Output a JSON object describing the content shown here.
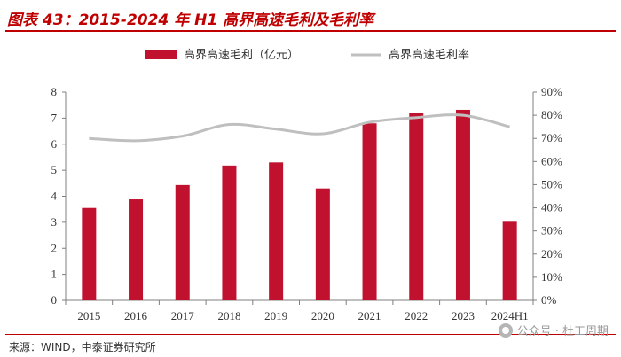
{
  "title": "图表 43：2015-2024 年 H1 高界高速毛利及毛利率",
  "source": "来源：WIND，中泰证券研究所",
  "watermark": "公众号 · 杜工周期",
  "colors": {
    "bar": "#c0122f",
    "line": "#bfbfbf",
    "accent": "#c00000"
  },
  "chart_data": {
    "type": "bar",
    "categories": [
      "2015",
      "2016",
      "2017",
      "2018",
      "2019",
      "2020",
      "2021",
      "2022",
      "2023",
      "2024H1"
    ],
    "series": [
      {
        "name": "高界高速毛利（亿元）",
        "type": "bar",
        "axis": "left",
        "values": [
          3.55,
          3.88,
          4.43,
          5.18,
          5.3,
          4.3,
          6.8,
          7.2,
          7.32,
          3.02
        ]
      },
      {
        "name": "高界高速毛利率",
        "type": "line",
        "axis": "right",
        "values": [
          70,
          69,
          71,
          76,
          74,
          72,
          77,
          79,
          80,
          75
        ]
      }
    ],
    "y_left": {
      "range": [
        0,
        8
      ],
      "ticks": [
        "0",
        "1",
        "2",
        "3",
        "4",
        "5",
        "6",
        "7",
        "8"
      ]
    },
    "y_right": {
      "range": [
        0,
        90
      ],
      "ticks": [
        "0%",
        "10%",
        "20%",
        "30%",
        "40%",
        "50%",
        "60%",
        "70%",
        "80%",
        "90%"
      ]
    },
    "legend_position": "top-center",
    "grid": false
  }
}
